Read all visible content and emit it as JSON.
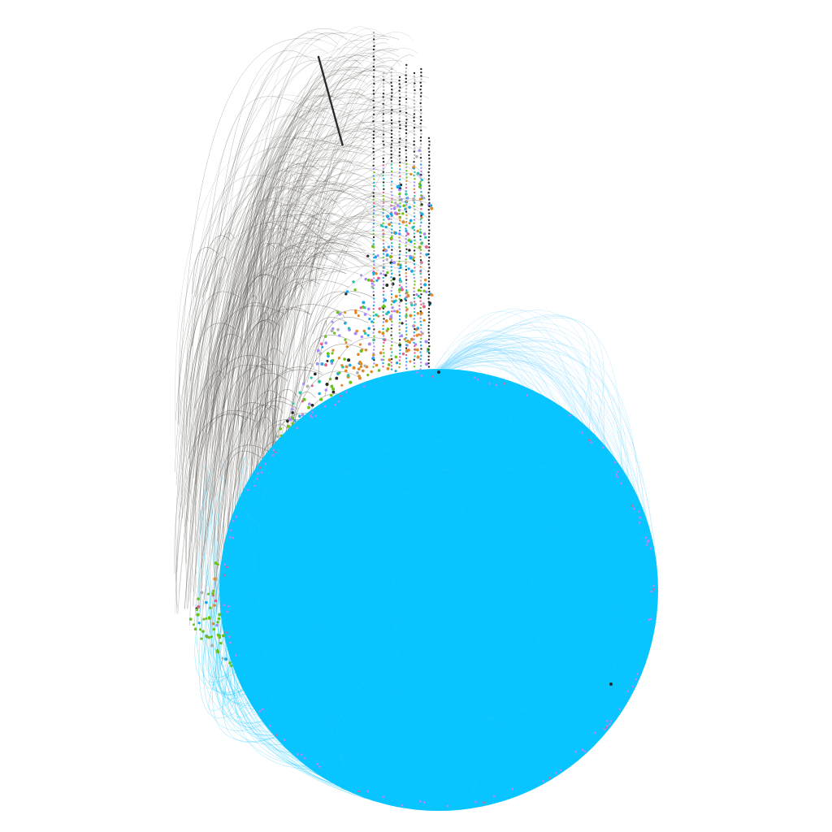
{
  "diagram": {
    "kind": "network-graph",
    "background": "#ffffff",
    "layout": "radial-ring-with-arched-tree",
    "palette": {
      "ring": "#08c4ff",
      "ring_edges": "#08c4ff",
      "dark_edges": "#4a4640",
      "light_edges": "#9a9690",
      "green": "#6ac21a",
      "teal": "#2ec4a6",
      "blue": "#1aa8e6",
      "purple": "#a78bfa",
      "violet": "#c084fc",
      "orange": "#e08a2a",
      "pink": "#e8608a",
      "gray": "#b0b0b0",
      "dark": "#2a2a2a",
      "light_blue_edges": "#7fd8ff"
    },
    "node_groups": [
      {
        "name": "ring-cluster",
        "color_key": "ring"
      },
      {
        "name": "purple-nodes",
        "color_key": "purple"
      },
      {
        "name": "green-nodes",
        "color_key": "green"
      },
      {
        "name": "teal-nodes",
        "color_key": "teal"
      },
      {
        "name": "blue-nodes",
        "color_key": "blue"
      },
      {
        "name": "orange-nodes",
        "color_key": "orange"
      },
      {
        "name": "pink-nodes",
        "color_key": "pink"
      },
      {
        "name": "gray-nodes",
        "color_key": "gray"
      },
      {
        "name": "dark-nodes",
        "color_key": "dark"
      }
    ]
  }
}
